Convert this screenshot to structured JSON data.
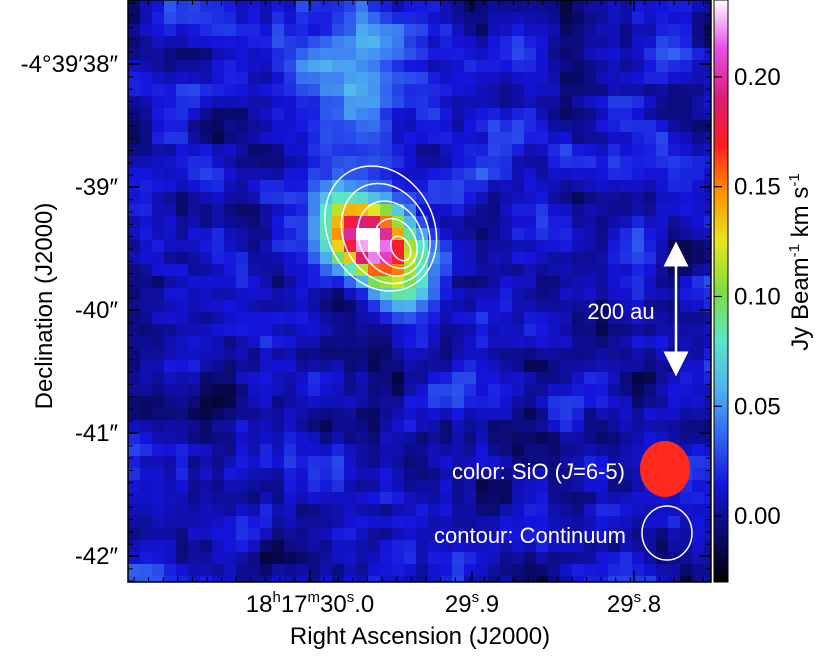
{
  "chart_data": {
    "type": "heatmap",
    "title": "",
    "xlabel": "Right Ascension (J2000)",
    "ylabel": "Declination (J2000)",
    "x_ticks": [
      {
        "main": "18",
        "sup1": "h",
        "mid": "17",
        "sup2": "m",
        "sec": "30",
        "sup3": "s",
        "frac": ".0",
        "ra_s": 30.0
      },
      {
        "main": "29",
        "sup3": "s",
        "frac": ".9",
        "ra_s": 29.9
      },
      {
        "main": "29",
        "sup3": "s",
        "frac": ".8",
        "ra_s": 29.8
      }
    ],
    "y_ticks": [
      {
        "label": "-4°39′38″",
        "dec_arcsec": -38
      },
      {
        "label": "-39″",
        "dec_arcsec": -39
      },
      {
        "label": "-40″",
        "dec_arcsec": -40
      },
      {
        "label": "-41″",
        "dec_arcsec": -41
      },
      {
        "label": "-42″",
        "dec_arcsec": -42
      }
    ],
    "colorbar": {
      "label": "Jy Beam",
      "label_sup1": "-1",
      "label_mid": " km s",
      "label_sup2": "-1",
      "range": [
        -0.03,
        0.235
      ],
      "ticks": [
        "0.00",
        "0.05",
        "0.10",
        "0.15",
        "0.20"
      ],
      "tick_values": [
        0.0,
        0.05,
        0.1,
        0.15,
        0.2
      ],
      "colors": [
        "#000000",
        "#0a0a6e",
        "#1414dc",
        "#3264f0",
        "#50b4f0",
        "#5ae6c8",
        "#7ddc3c",
        "#e6e61e",
        "#ff9600",
        "#ff1e1e",
        "#dc1e78",
        "#e650e6",
        "#ffffff"
      ]
    },
    "emission_peak": {
      "ra_s": 29.962,
      "dec_arcsec": -39.45,
      "peak_value": 0.23
    },
    "contour_levels": 5,
    "legend": {
      "color_text_pre": "color: SiO (",
      "color_text_italic": "J",
      "color_text_post": "=6-5)",
      "contour_text": "contour: Continuum",
      "color_beam_fill": "#ff2a1e",
      "contour_beam_stroke": "#ffffff"
    },
    "scale_bar": {
      "label": "200 au"
    }
  }
}
